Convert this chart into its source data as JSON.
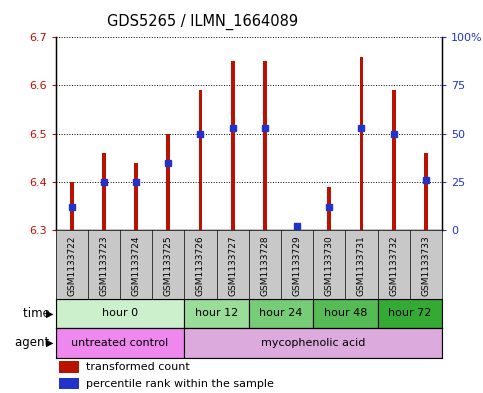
{
  "title": "GDS5265 / ILMN_1664089",
  "samples": [
    "GSM1133722",
    "GSM1133723",
    "GSM1133724",
    "GSM1133725",
    "GSM1133726",
    "GSM1133727",
    "GSM1133728",
    "GSM1133729",
    "GSM1133730",
    "GSM1133731",
    "GSM1133732",
    "GSM1133733"
  ],
  "bar_values": [
    6.4,
    6.46,
    6.44,
    6.5,
    6.59,
    6.65,
    6.65,
    6.31,
    6.39,
    6.66,
    6.59,
    6.46
  ],
  "bar_base": 6.3,
  "percentile_values": [
    0.12,
    0.25,
    0.25,
    0.35,
    0.5,
    0.53,
    0.53,
    0.02,
    0.12,
    0.53,
    0.5,
    0.26
  ],
  "ylim_left": [
    6.3,
    6.7
  ],
  "ylim_right": [
    0,
    100
  ],
  "yticks_left": [
    6.3,
    6.4,
    6.5,
    6.6,
    6.7
  ],
  "yticks_right": [
    0,
    25,
    50,
    75,
    100
  ],
  "bar_color": "#bb1100",
  "dot_color": "#2233cc",
  "time_groups": [
    {
      "label": "hour 0",
      "start": 0,
      "end": 4,
      "color": "#ccf0cc"
    },
    {
      "label": "hour 12",
      "start": 4,
      "end": 6,
      "color": "#99dd99"
    },
    {
      "label": "hour 24",
      "start": 6,
      "end": 8,
      "color": "#77cc77"
    },
    {
      "label": "hour 48",
      "start": 8,
      "end": 10,
      "color": "#55bb55"
    },
    {
      "label": "hour 72",
      "start": 10,
      "end": 12,
      "color": "#33aa33"
    }
  ],
  "agent_groups": [
    {
      "label": "untreated control",
      "start": 0,
      "end": 4,
      "color": "#ee88ee"
    },
    {
      "label": "mycophenolic acid",
      "start": 4,
      "end": 12,
      "color": "#ddaadd"
    }
  ],
  "legend_bar_label": "transformed count",
  "legend_dot_label": "percentile rank within the sample",
  "time_label": "time",
  "agent_label": "agent",
  "bar_width": 0.12,
  "dot_size": 4,
  "xlabel_gray": "#c8c8c8",
  "spine_color": "#000000"
}
